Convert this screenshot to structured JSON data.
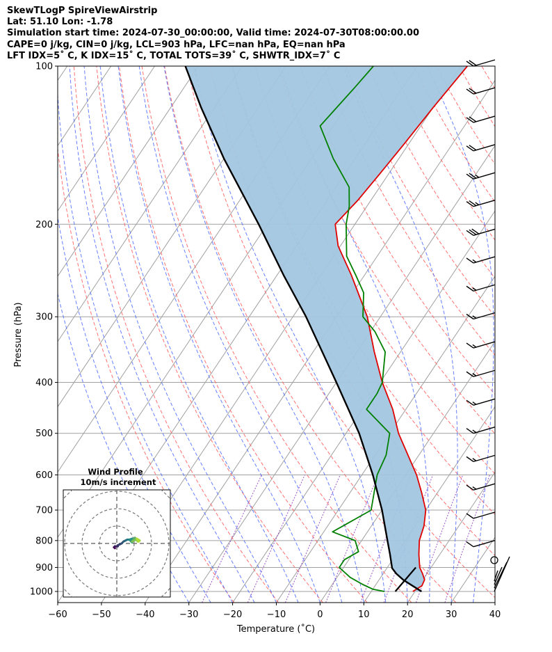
{
  "header": {
    "line1": "SkewTLogP SpireViewAirstrip",
    "line2": "Lat: 51.10   Lon: -1.78",
    "line3": "Simulation start time: 2024-07-30_00:00:00, Valid time: 2024-07-30T08:00:00.00",
    "line4": "CAPE=0 j/kg, CIN=0 j/kg, LCL=903 hPa, LFC=nan hPa, EQ=nan hPa",
    "line5": "LFT IDX=5˚ C, K IDX=15˚ C, TOTAL TOTS=39˚ C, SHWTR_IDX=7˚ C"
  },
  "chart_data": {
    "type": "line",
    "subtype": "skew-t log-p",
    "xlabel": "Temperature (˚C)",
    "ylabel": "Pressure (hPa)",
    "xlim": [
      -60,
      40
    ],
    "ylim": [
      1050,
      100
    ],
    "y_scale": "log",
    "x_ticks": [
      -60,
      -50,
      -40,
      -30,
      -20,
      -10,
      0,
      10,
      20,
      30,
      40
    ],
    "x_tick_labels": [
      "−60",
      "−50",
      "−40",
      "−30",
      "−20",
      "−10",
      "0",
      "10",
      "20",
      "30",
      "40"
    ],
    "y_ticks": [
      1000,
      900,
      800,
      700,
      600,
      500,
      400,
      300,
      200,
      100
    ],
    "y_tick_labels": [
      "1000",
      "900",
      "800",
      "700",
      "600",
      "500",
      "400",
      "300",
      "200",
      "100"
    ],
    "grid": true,
    "colors": {
      "temperature": "#e00000",
      "dewpoint": "#008000",
      "parcel": "#000000",
      "cin_shading": "#a3c6e0",
      "dry_adiabat": "#ff6060",
      "moist_adiabat": "#4060ff",
      "mixing_ratio": "#9040c0",
      "isotherm": "#a0a0a0"
    },
    "series": [
      {
        "name": "Temperature",
        "points": [
          [
            1000,
            19.5
          ],
          [
            975,
            20.7
          ],
          [
            950,
            20.4
          ],
          [
            925,
            19.0
          ],
          [
            900,
            17.4
          ],
          [
            850,
            15.2
          ],
          [
            800,
            13.2
          ],
          [
            750,
            12.0
          ],
          [
            700,
            10.0
          ],
          [
            650,
            6.5
          ],
          [
            600,
            2.5
          ],
          [
            550,
            -2.5
          ],
          [
            500,
            -8.0
          ],
          [
            450,
            -13.0
          ],
          [
            400,
            -19.5
          ],
          [
            350,
            -26.0
          ],
          [
            300,
            -33.0
          ],
          [
            250,
            -43.0
          ],
          [
            220,
            -50.5
          ],
          [
            200,
            -54.5
          ],
          [
            180,
            -53.0
          ],
          [
            160,
            -52.0
          ],
          [
            140,
            -51.0
          ],
          [
            120,
            -50.0
          ],
          [
            100,
            -48.5
          ]
        ]
      },
      {
        "name": "Dewpoint",
        "points": [
          [
            1000,
            13.0
          ],
          [
            990,
            10.0
          ],
          [
            970,
            7.0
          ],
          [
            940,
            3.0
          ],
          [
            900,
            -1.0
          ],
          [
            870,
            -1.0
          ],
          [
            840,
            1.0
          ],
          [
            800,
            -1.5
          ],
          [
            770,
            -8.0
          ],
          [
            700,
            -2.5
          ],
          [
            600,
            -6.5
          ],
          [
            550,
            -7.5
          ],
          [
            500,
            -10.0
          ],
          [
            450,
            -19.0
          ],
          [
            420,
            -19.0
          ],
          [
            400,
            -19.5
          ],
          [
            350,
            -23.5
          ],
          [
            320,
            -29.0
          ],
          [
            300,
            -34.0
          ],
          [
            270,
            -37.5
          ],
          [
            250,
            -42.0
          ],
          [
            230,
            -47.0
          ],
          [
            200,
            -52.0
          ],
          [
            185,
            -54.0
          ],
          [
            170,
            -57.0
          ],
          [
            150,
            -65.0
          ],
          [
            130,
            -73.0
          ],
          [
            110,
            -71.0
          ],
          [
            100,
            -70.0
          ]
        ]
      },
      {
        "name": "Parcel",
        "points": [
          [
            1000,
            21.5
          ],
          [
            975,
            18.5
          ],
          [
            950,
            15.5
          ],
          [
            925,
            13.0
          ],
          [
            903,
            11.2
          ],
          [
            850,
            8.6
          ],
          [
            800,
            5.9
          ],
          [
            700,
            0.0
          ],
          [
            600,
            -7.5
          ],
          [
            500,
            -17.0
          ],
          [
            400,
            -30.0
          ],
          [
            300,
            -47.0
          ],
          [
            250,
            -58.5
          ],
          [
            200,
            -72.0
          ],
          [
            150,
            -90.0
          ],
          [
            120,
            -103.0
          ],
          [
            100,
            -113.0
          ]
        ]
      }
    ],
    "near_surface_parcel_segment": [
      [
        1000,
        15.5
      ],
      [
        900,
        16.5
      ]
    ],
    "wind_barbs": [
      {
        "p": 100,
        "speed_kt": 20
      },
      {
        "p": 113,
        "speed_kt": 20
      },
      {
        "p": 128,
        "speed_kt": 20
      },
      {
        "p": 145,
        "speed_kt": 20
      },
      {
        "p": 164,
        "speed_kt": 25
      },
      {
        "p": 185,
        "speed_kt": 25
      },
      {
        "p": 210,
        "speed_kt": 30
      },
      {
        "p": 237,
        "speed_kt": 15
      },
      {
        "p": 268,
        "speed_kt": 15
      },
      {
        "p": 303,
        "speed_kt": 15
      },
      {
        "p": 344,
        "speed_kt": 15
      },
      {
        "p": 390,
        "speed_kt": 15
      },
      {
        "p": 442,
        "speed_kt": 15
      },
      {
        "p": 500,
        "speed_kt": 15
      },
      {
        "p": 566,
        "speed_kt": 15
      },
      {
        "p": 641,
        "speed_kt": 15
      },
      {
        "p": 726,
        "speed_kt": 10
      },
      {
        "p": 822,
        "speed_kt": 10
      }
    ],
    "hodograph": {
      "title": "Wind Profile",
      "subtitle": "10m/s increment",
      "ring_step_ms": 10,
      "points_uv": [
        [
          -2,
          -5
        ],
        [
          -3,
          -4
        ],
        [
          -2,
          -3
        ],
        [
          1,
          -3
        ],
        [
          1,
          -2
        ],
        [
          3,
          -1
        ],
        [
          5,
          0
        ],
        [
          7,
          2
        ],
        [
          9,
          3
        ],
        [
          11,
          4
        ],
        [
          13,
          4
        ],
        [
          16,
          5
        ],
        [
          14,
          3
        ],
        [
          16,
          1
        ],
        [
          17,
          4
        ],
        [
          19,
          6
        ],
        [
          18,
          3
        ],
        [
          16,
          2
        ],
        [
          20,
          4
        ],
        [
          22,
          2
        ],
        [
          24,
          3
        ],
        [
          21,
          5
        ],
        [
          23,
          2
        ]
      ]
    }
  }
}
